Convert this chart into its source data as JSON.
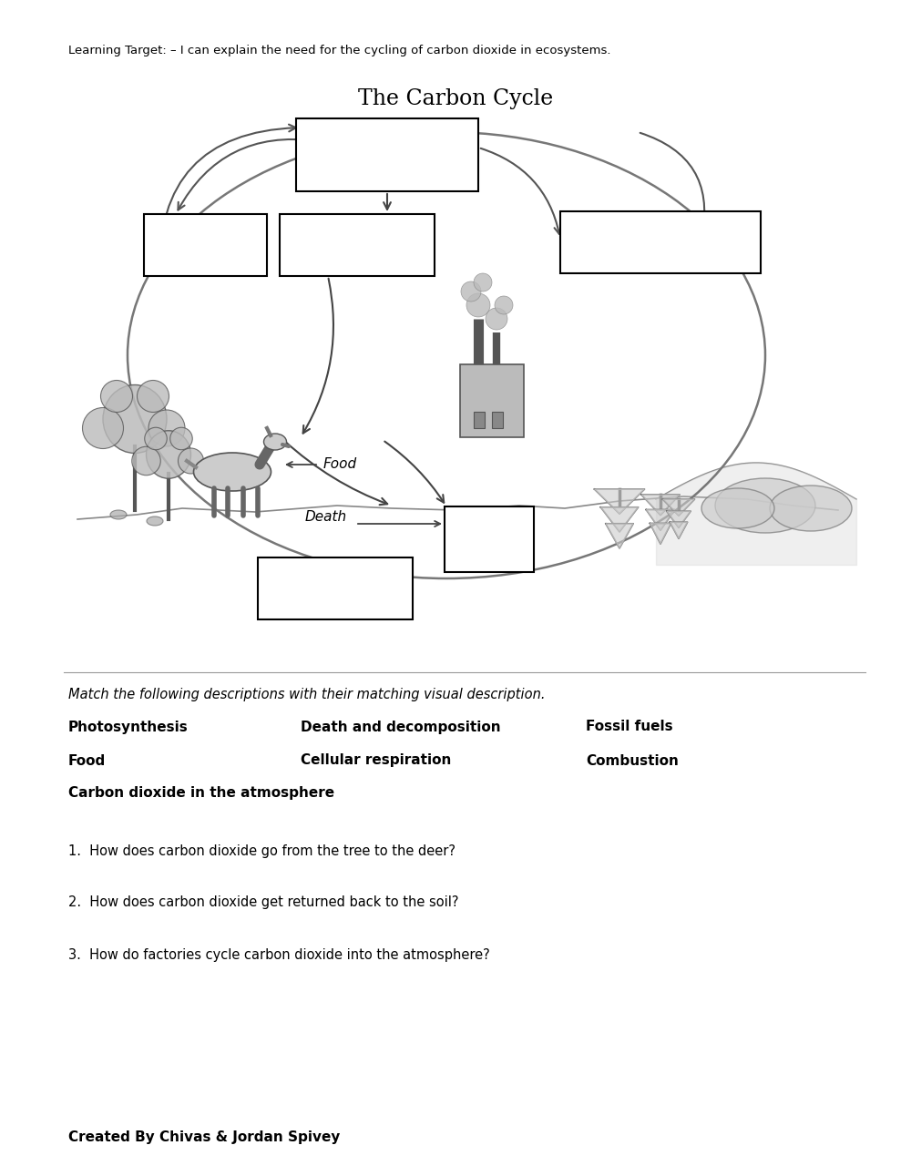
{
  "background_color": "#ffffff",
  "page_width": 10.0,
  "page_height": 12.91,
  "learning_target": "Learning Target: – I can explain the need for the cycling of carbon dioxide in ecosystems.",
  "diagram_title": "The Carbon Cycle",
  "match_instruction": "Match the following descriptions with their matching visual description.",
  "match_col1": [
    "Photosynthesis",
    "Food",
    "Carbon dioxide in the atmosphere"
  ],
  "match_col2": [
    "Death and decomposition",
    "Cellular respiration",
    ""
  ],
  "match_col3": [
    "Fossil fuels",
    "Combustion",
    ""
  ],
  "questions": [
    "1.  How does carbon dioxide go from the tree to the deer?",
    "2.  How does carbon dioxide get returned back to the soil?",
    "3.  How do factories cycle carbon dioxide into the atmosphere?"
  ],
  "footer": "Created By Chivas & Jordan Spivey",
  "text_fontsize": 10.5,
  "title_fontsize": 17,
  "match_fontsize": 11,
  "match_italic_fontsize": 10.5,
  "footer_fontsize": 11
}
